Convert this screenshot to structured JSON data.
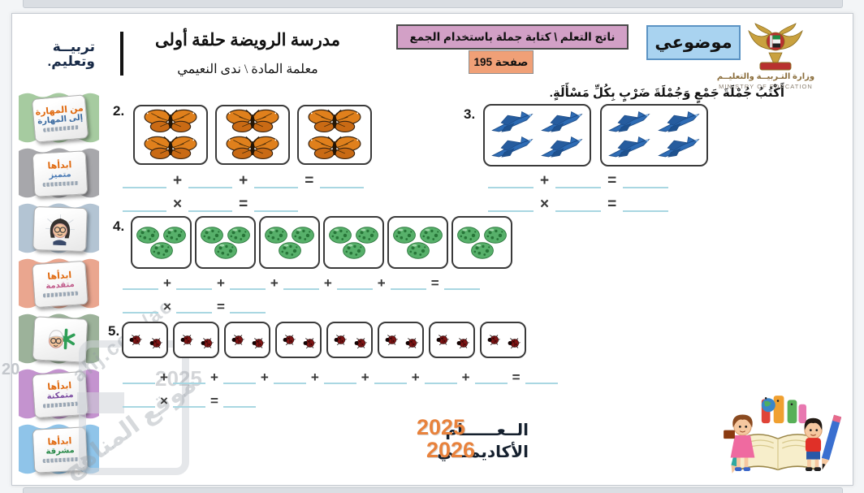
{
  "viewer": {
    "adjacent_slide_top": "partial previous slide",
    "adjacent_slide_bottom": "partial next slide"
  },
  "sidebar": {
    "brand_line1": "تربيــة",
    "brand_line2": "وتعليم.",
    "sections": [
      {
        "color": "#a6cba0",
        "stamp": {
          "type": "text",
          "lines": [
            {
              "text": "من المهارة",
              "color": "#e06a10"
            },
            {
              "text": "إلى المهارة",
              "color": "#3a6aa0"
            }
          ]
        }
      },
      {
        "color": "#a7a7ab",
        "stamp": {
          "type": "text",
          "lines": [
            {
              "text": "ابدأها",
              "color": "#e06a10"
            },
            {
              "text": "متميز",
              "color": "#4a7ab5"
            }
          ]
        }
      },
      {
        "color": "#b3c4d3",
        "stamp": {
          "type": "sym-avatar-girl"
        }
      },
      {
        "color": "#eaa68f",
        "stamp": {
          "type": "text",
          "lines": [
            {
              "text": "ابدأها",
              "color": "#e06a10"
            },
            {
              "text": "متقدمة",
              "color": "#c05a8a"
            }
          ]
        }
      },
      {
        "color": "#9cb29a",
        "stamp": {
          "type": "sym-avatar-boy"
        }
      },
      {
        "color": "#c493cf",
        "stamp": {
          "type": "text",
          "lines": [
            {
              "text": "ابدأها",
              "color": "#e06a10"
            },
            {
              "text": "متمكنة",
              "color": "#7a4aa0"
            }
          ]
        }
      },
      {
        "color": "#8fc4e9",
        "stamp": {
          "type": "text",
          "lines": [
            {
              "text": "ابدأها",
              "color": "#e06a10"
            },
            {
              "text": "مشرقة",
              "color": "#2a8a4a"
            }
          ]
        }
      }
    ]
  },
  "header": {
    "ministry_ar": "وزارة التـربيــة والتعليــم",
    "ministry_en": "MINISTRY OF EDUCATION",
    "mode_badge": "موضوعي",
    "outcome_badge": "ناتج التعلم \\ كتابة جملة باستخدام الجمع",
    "page_badge": "صفحة 195",
    "school": "مدرسة الرويضة حلقة أولى",
    "teacher": "معلمة المادة \\ ندى النعيمي"
  },
  "instruction": "أَكْتُبُ جُمْلَةَ جَمْعٍ وَجُمْلَةَ ضَرْبٍ بِكُلِّ مَسْأَلَةٍ.",
  "equation": {
    "plus": "+",
    "times": "×",
    "equals": "="
  },
  "problems": [
    {
      "number": "2.",
      "item": "butterfly",
      "groups": 3,
      "per_group": 2,
      "add_terms": 3
    },
    {
      "number": "3.",
      "item": "jet",
      "groups": 2,
      "per_group": 4,
      "add_terms": 2
    },
    {
      "number": "4.",
      "item": "egg",
      "groups": 6,
      "per_group": 3,
      "add_terms": 6
    },
    {
      "number": "5.",
      "item": "ladybug",
      "groups": 8,
      "per_group": 2,
      "add_terms": 8
    }
  ],
  "footer": {
    "year_word1": "الــعــــــام",
    "year_word2": "الأكاديمـــي",
    "year1": "2025",
    "year2": "2026"
  },
  "watermarks": {
    "site": "ahj.com/ae",
    "year": "2025",
    "site_ar": "موقع المناهج",
    "left_fragment": "20"
  },
  "colors": {
    "blank_underline": "#a9d7e2",
    "mode_badge_bg": "#a9d3f0",
    "outcome_badge_bg": "#d2a0c6",
    "page_badge_bg": "#f0a077",
    "year_number": "#e8823c"
  }
}
